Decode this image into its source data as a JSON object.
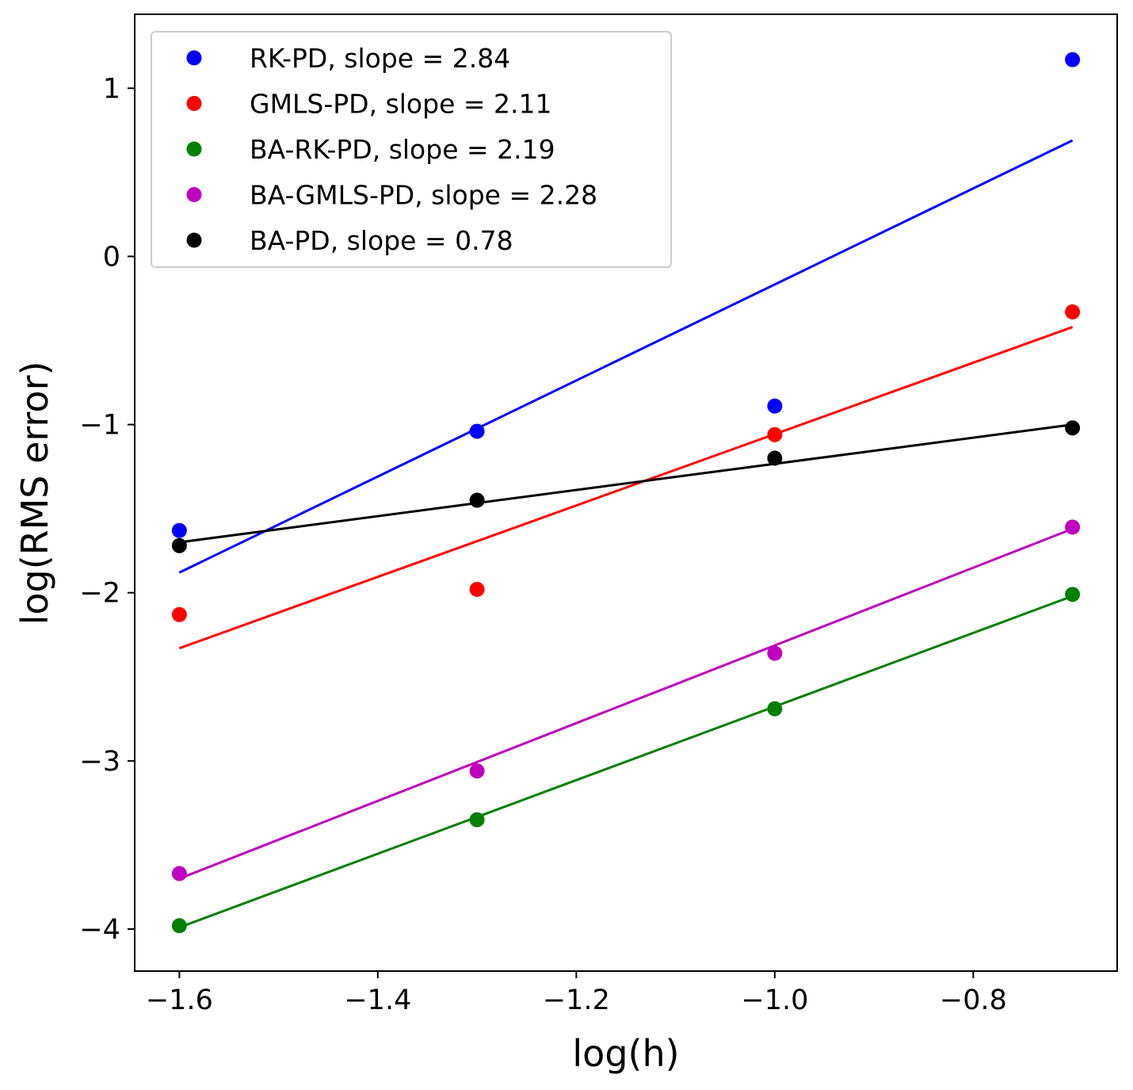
{
  "chart_data": {
    "type": "scatter",
    "title": "",
    "xlabel": "log(h)",
    "ylabel": "log(RMS error)",
    "xlim": [
      -1.645,
      -0.655
    ],
    "ylim": [
      -4.25,
      1.44
    ],
    "xticks": [
      -1.6,
      -1.4,
      -1.2,
      -1.0,
      -0.8
    ],
    "xtick_labels": [
      "−1.6",
      "−1.4",
      "−1.2",
      "−1.0",
      "−0.8"
    ],
    "yticks": [
      1,
      0,
      -1,
      -2,
      -3,
      -4
    ],
    "ytick_labels": [
      "1",
      "0",
      "−1",
      "−2",
      "−3",
      "−4"
    ],
    "grid": false,
    "legend_position": "top-left",
    "x": [
      -1.6,
      -1.3,
      -1.0,
      -0.7
    ],
    "series": [
      {
        "name": "RK-PD, slope = 2.84",
        "color": "#0000ff",
        "values": [
          -1.63,
          -1.04,
          -0.89,
          1.17
        ],
        "fit": {
          "x": [
            -1.6,
            -0.7
          ],
          "y": [
            -1.88,
            0.69
          ]
        }
      },
      {
        "name": "GMLS-PD, slope = 2.11",
        "color": "#ff0000",
        "values": [
          -2.13,
          -1.98,
          -1.06,
          -0.33
        ],
        "fit": {
          "x": [
            -1.6,
            -0.7
          ],
          "y": [
            -2.33,
            -0.42
          ]
        }
      },
      {
        "name": "BA-RK-PD, slope = 2.19",
        "color": "#008000",
        "values": [
          -3.98,
          -3.35,
          -2.69,
          -2.01
        ],
        "fit": {
          "x": [
            -1.6,
            -0.7
          ],
          "y": [
            -3.99,
            -2.02
          ]
        }
      },
      {
        "name": "BA-GMLS-PD, slope = 2.28",
        "color": "#bf00bf",
        "values": [
          -3.67,
          -3.06,
          -2.36,
          -1.61
        ],
        "fit": {
          "x": [
            -1.6,
            -0.7
          ],
          "y": [
            -3.7,
            -1.62
          ]
        }
      },
      {
        "name": "BA-PD, slope = 0.78",
        "color": "#000000",
        "values": [
          -1.72,
          -1.45,
          -1.2,
          -1.02
        ],
        "fit": {
          "x": [
            -1.6,
            -0.7
          ],
          "y": [
            -1.7,
            -1.0
          ]
        }
      }
    ]
  }
}
